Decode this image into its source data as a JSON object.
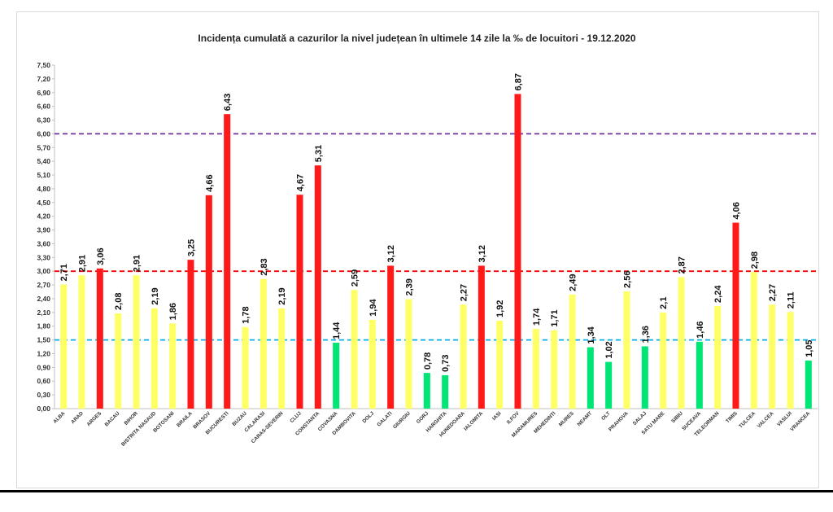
{
  "chart_data": {
    "type": "bar",
    "title": "Incidența cumulată a cazurilor la nivel județean în ultimele 14 zile la ‰ de locuitori - 19.12.2020",
    "categories": [
      "ALBA",
      "ARAD",
      "ARGES",
      "BACAU",
      "BIHOR",
      "BISTRITA NASAUD",
      "BOTOSANI",
      "BRAILA",
      "BRASOV",
      "BUCURESTI",
      "BUZAU",
      "CALARASI",
      "CARAS-SEVERIN",
      "CLUJ",
      "CONSTANTA",
      "COVASNA",
      "DAMBOVITA",
      "DOLJ",
      "GALATI",
      "GIURGIU",
      "GORJ",
      "HARGHITA",
      "HUNEDOARA",
      "IALOMITA",
      "IASI",
      "ILFOV",
      "MARAMURES",
      "MEHEDINTI",
      "MURES",
      "NEAMT",
      "OLT",
      "PRAHOVA",
      "SALAJ",
      "SATU MARE",
      "SIBIU",
      "SUCEAVA",
      "TELEORMAN",
      "TIMIS",
      "TULCEA",
      "VALCEA",
      "VASLUI",
      "VRANCEA"
    ],
    "values": [
      2.71,
      2.91,
      3.06,
      2.08,
      2.91,
      2.19,
      1.86,
      3.25,
      4.66,
      6.43,
      1.78,
      2.83,
      2.19,
      4.67,
      5.31,
      1.44,
      2.59,
      1.94,
      3.12,
      2.39,
      0.78,
      0.73,
      2.27,
      3.12,
      1.92,
      6.87,
      1.74,
      1.71,
      2.49,
      1.34,
      1.02,
      2.56,
      1.36,
      2.1,
      2.87,
      1.46,
      2.24,
      4.06,
      2.98,
      2.27,
      2.11,
      1.05
    ],
    "value_labels": [
      "2,71",
      "2,91",
      "3,06",
      "2,08",
      "2,91",
      "2,19",
      "1,86",
      "3,25",
      "4,66",
      "6,43",
      "1,78",
      "2,83",
      "2,19",
      "4,67",
      "5,31",
      "1,44",
      "2,59",
      "1,94",
      "3,12",
      "2,39",
      "0,78",
      "0,73",
      "2,27",
      "3,12",
      "1,92",
      "6,87",
      "1,74",
      "1,71",
      "2,49",
      "1,34",
      "1,02",
      "2,56",
      "1,36",
      "2,1",
      "2,87",
      "1,46",
      "2,24",
      "4,06",
      "2,98",
      "2,27",
      "2,11",
      "1,05"
    ],
    "yticks": [
      "0,00",
      "0,30",
      "0,60",
      "0,90",
      "1,20",
      "1,50",
      "1,80",
      "2,10",
      "2,40",
      "2,70",
      "3,00",
      "3,30",
      "3,60",
      "3,90",
      "4,20",
      "4,50",
      "4,80",
      "5,10",
      "5,40",
      "5,70",
      "6,00",
      "6,30",
      "6,60",
      "6,90",
      "7,20",
      "7,50"
    ],
    "ylim": [
      0,
      7.5
    ],
    "thresholds": [
      {
        "value": 1.5,
        "color": "#00b0f0"
      },
      {
        "value": 3.0,
        "color": "#ff0000"
      },
      {
        "value": 6.0,
        "color": "#7030a0"
      }
    ],
    "bar_colors": {
      "low": "#00e676",
      "mid": "#ffff66",
      "high": "#ff1a1a"
    },
    "xlabel": "",
    "ylabel": "",
    "grid": false,
    "legend": "none"
  }
}
